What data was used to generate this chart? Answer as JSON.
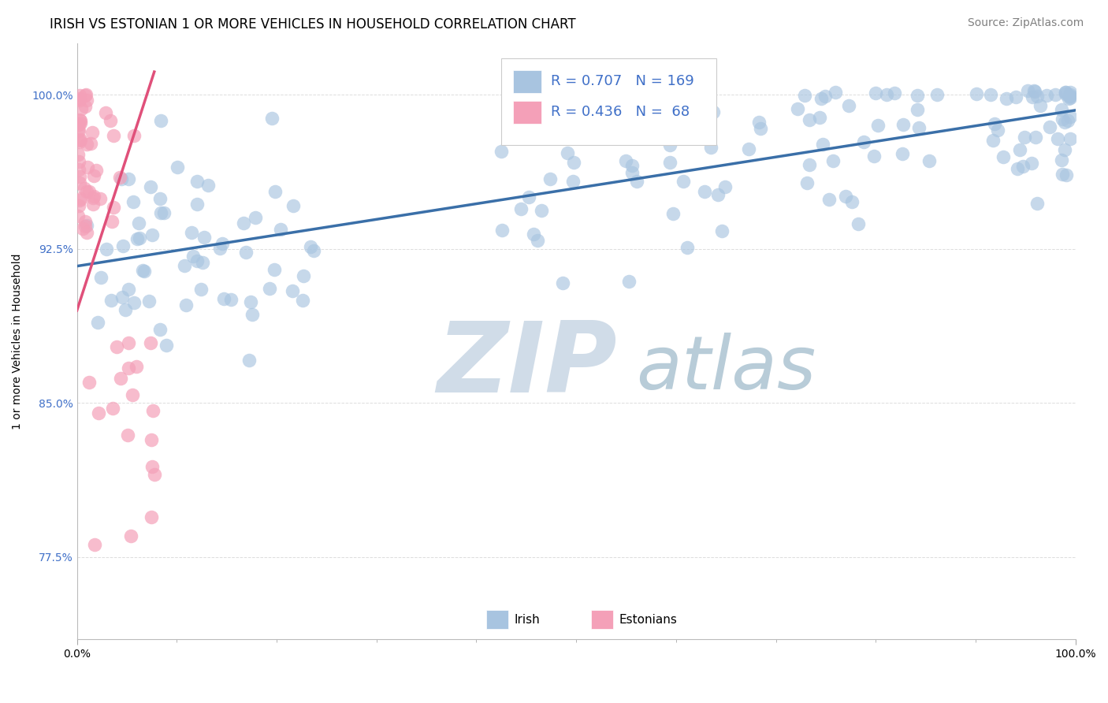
{
  "title": "IRISH VS ESTONIAN 1 OR MORE VEHICLES IN HOUSEHOLD CORRELATION CHART",
  "source_text": "Source: ZipAtlas.com",
  "ylabel": "1 or more Vehicles in Household",
  "x_tick_labels": [
    "0.0%",
    "100.0%"
  ],
  "y_tick_labels": [
    "77.5%",
    "85.0%",
    "92.5%",
    "100.0%"
  ],
  "y_tick_values": [
    0.775,
    0.85,
    0.925,
    1.0
  ],
  "x_lim": [
    0.0,
    1.0
  ],
  "y_lim": [
    0.735,
    1.025
  ],
  "irish_R": 0.707,
  "irish_N": 169,
  "estonian_R": 0.436,
  "estonian_N": 68,
  "irish_color": "#a8c4e0",
  "estonian_color": "#f4a0b8",
  "irish_line_color": "#3a6fa8",
  "estonian_line_color": "#e0507a",
  "watermark_zip": "ZIP",
  "watermark_atlas": "atlas",
  "watermark_color_zip": "#d0dce8",
  "watermark_color_atlas": "#b8ccd8",
  "background_color": "#ffffff",
  "grid_color": "#dddddd",
  "legend_R_color": "#4070c8",
  "title_fontsize": 12,
  "ylabel_fontsize": 10,
  "tick_fontsize": 10,
  "legend_fontsize": 13,
  "source_fontsize": 10
}
